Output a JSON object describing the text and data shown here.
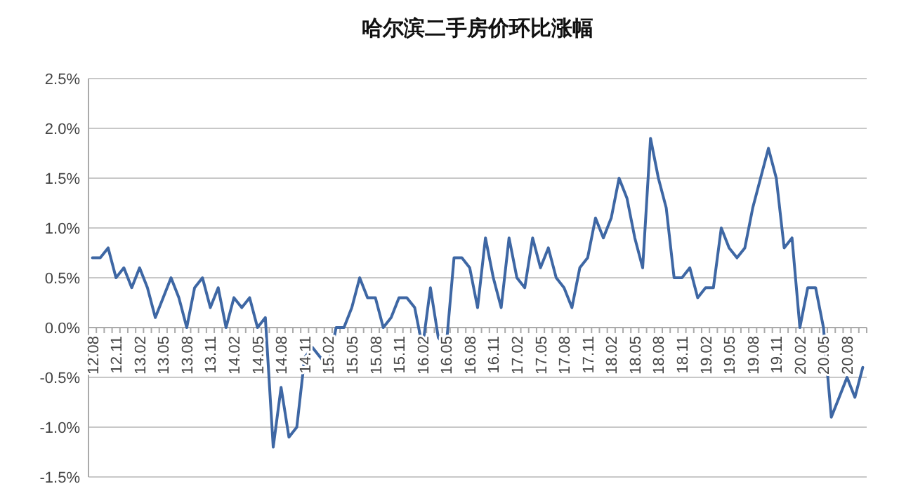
{
  "chart_data": {
    "type": "line",
    "title": "哈尔滨二手房价环比涨幅",
    "categories": [
      "12.08",
      null,
      null,
      "12.11",
      null,
      null,
      "13.02",
      null,
      null,
      "13.05",
      null,
      null,
      "13.08",
      null,
      null,
      "13.11",
      null,
      null,
      "14.02",
      null,
      null,
      "14.05",
      null,
      null,
      "14.08",
      null,
      null,
      "14.11",
      null,
      null,
      "15.02",
      null,
      null,
      "15.05",
      null,
      null,
      "15.08",
      null,
      null,
      "15.11",
      null,
      null,
      "16.02",
      null,
      null,
      "16.05",
      null,
      null,
      "16.08",
      null,
      null,
      "16.11",
      null,
      null,
      "17.02",
      null,
      null,
      "17.05",
      null,
      null,
      "17.08",
      null,
      null,
      "17.11",
      null,
      null,
      "18.02",
      null,
      null,
      "18.05",
      null,
      null,
      "18.08",
      null,
      null,
      "18.11",
      null,
      null,
      "19.02",
      null,
      null,
      "19.05",
      null,
      null,
      "19.08",
      null,
      null,
      "19.11",
      null,
      null,
      "20.02",
      null,
      null,
      "20.05",
      null,
      null,
      "20.08",
      null,
      null
    ],
    "series": [
      {
        "color": "#3e67a4",
        "values": [
          0.7,
          0.7,
          0.8,
          0.5,
          0.6,
          0.4,
          0.6,
          0.4,
          0.1,
          0.3,
          0.5,
          0.3,
          0.0,
          0.4,
          0.5,
          0.2,
          0.4,
          0.0,
          0.3,
          0.2,
          0.3,
          0.0,
          0.1,
          -1.2,
          -0.6,
          -1.1,
          -1.0,
          -0.3,
          -0.2,
          -0.3,
          -0.4,
          0.0,
          0.0,
          0.2,
          0.5,
          0.3,
          0.3,
          0.0,
          0.1,
          0.3,
          0.3,
          0.2,
          -0.2,
          0.4,
          -0.1,
          -0.2,
          0.7,
          0.7,
          0.6,
          0.2,
          0.9,
          0.5,
          0.2,
          0.9,
          0.5,
          0.4,
          0.9,
          0.6,
          0.8,
          0.5,
          0.4,
          0.2,
          0.6,
          0.7,
          1.1,
          0.9,
          1.1,
          1.5,
          1.3,
          0.9,
          0.6,
          1.9,
          1.5,
          1.2,
          0.5,
          0.5,
          0.6,
          0.3,
          0.4,
          0.4,
          1.0,
          0.8,
          0.7,
          0.8,
          1.2,
          1.5,
          1.8,
          1.5,
          0.8,
          0.9,
          0.0,
          0.4,
          0.4,
          0.0,
          -0.9,
          -0.7,
          -0.5,
          -0.7,
          -0.4
        ]
      }
    ],
    "ylim": [
      -1.5,
      2.5
    ],
    "yticks": [
      {
        "value": -1.5,
        "label": "-1.5%"
      },
      {
        "value": -1.0,
        "label": "-1.0%"
      },
      {
        "value": -0.5,
        "label": "-0.5%"
      },
      {
        "value": 0,
        "label": "0.0%"
      },
      {
        "value": 0.5,
        "label": "0.5%"
      },
      {
        "value": 1.0,
        "label": "1.0%"
      },
      {
        "value": 1.5,
        "label": "1.5%"
      },
      {
        "value": 2.0,
        "label": "2.0%"
      },
      {
        "value": 2.5,
        "label": "2.5%"
      }
    ],
    "grid": "y"
  }
}
